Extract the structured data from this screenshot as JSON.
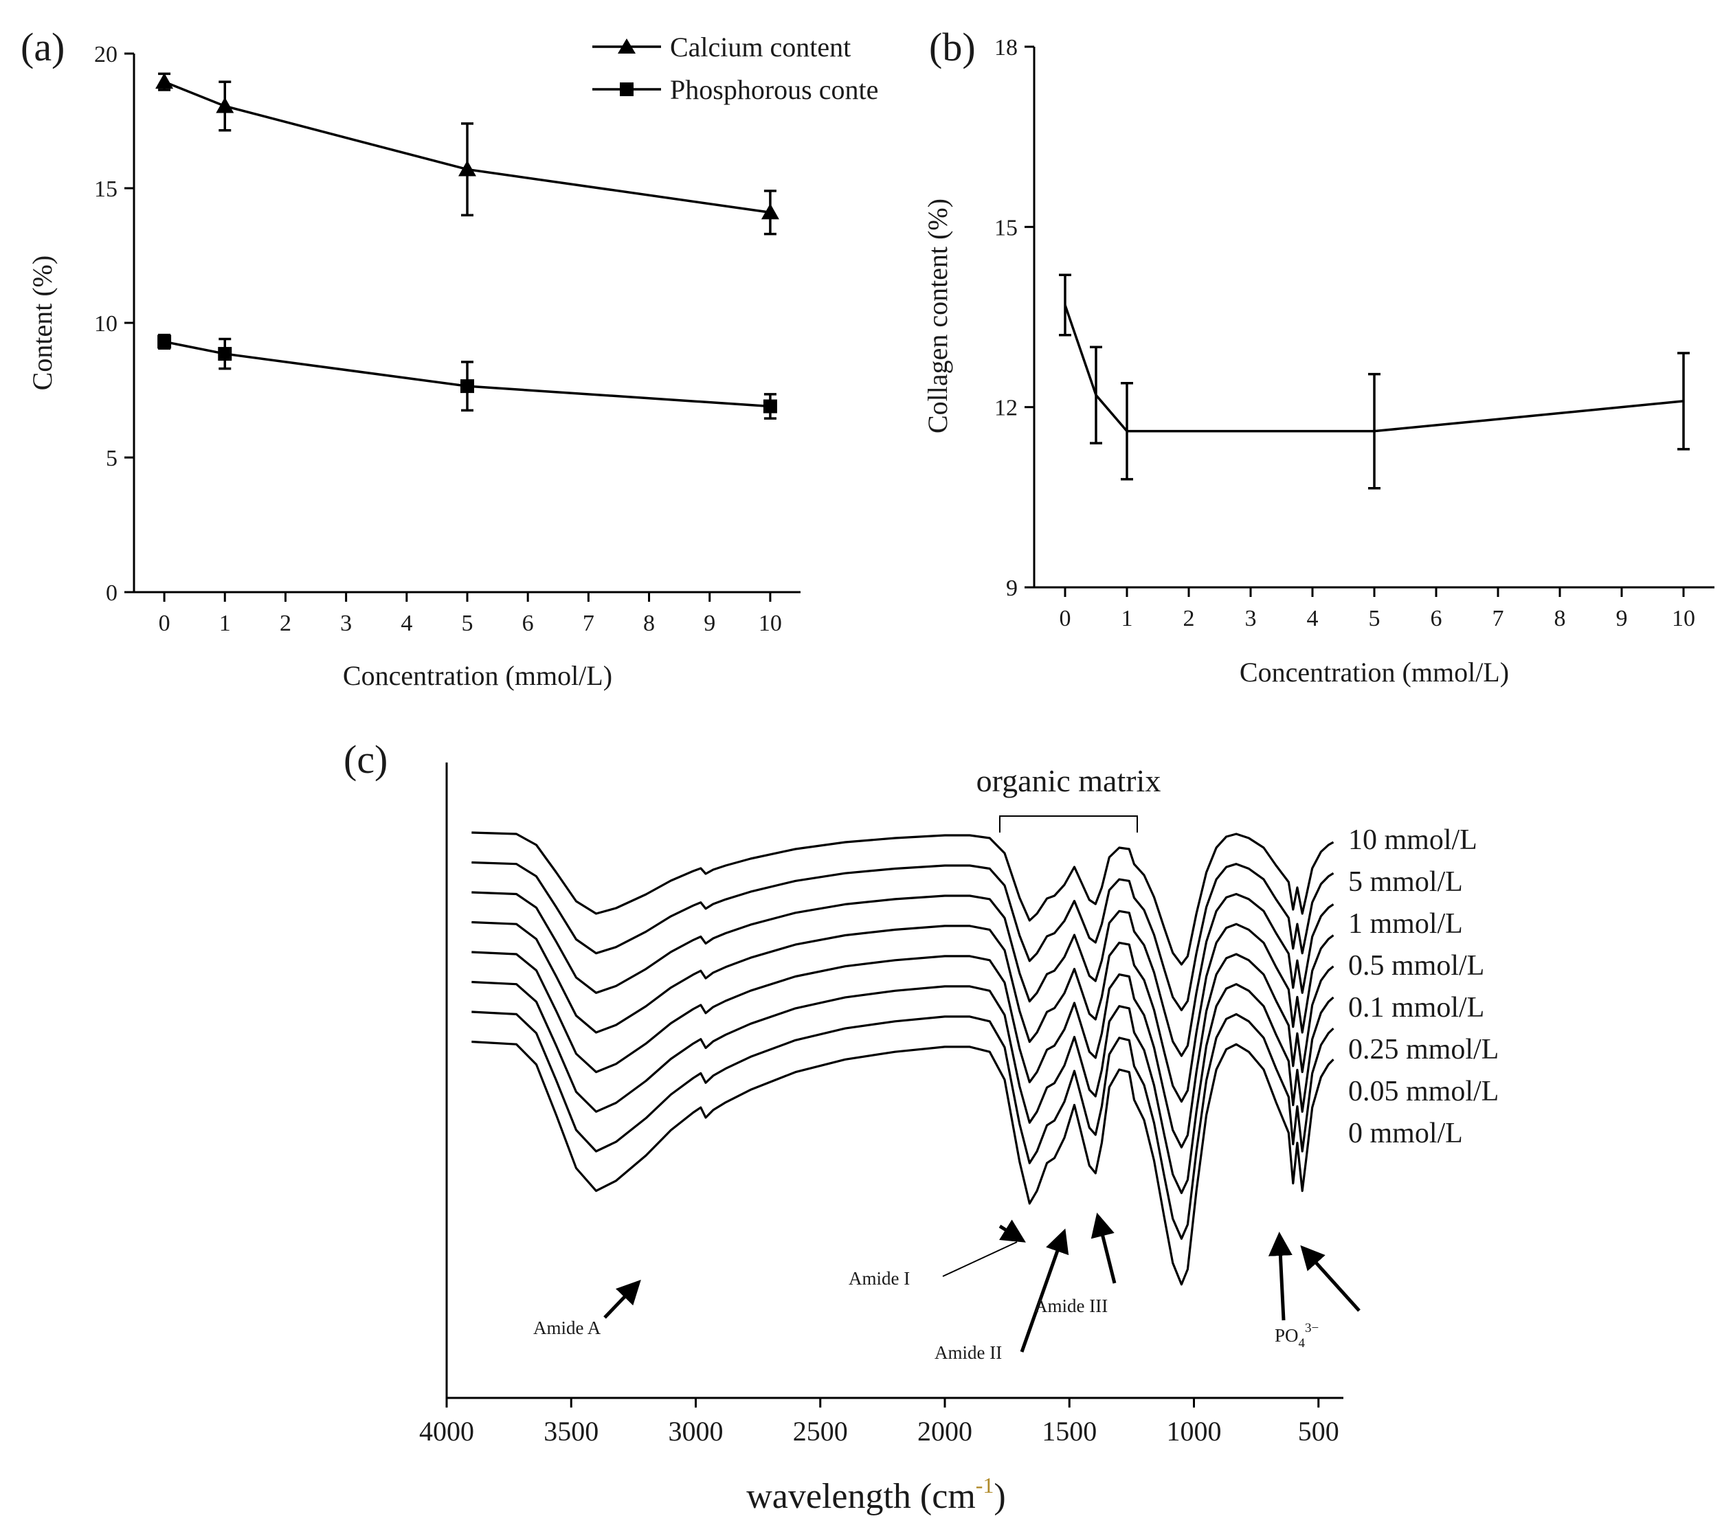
{
  "chart_data": [
    {
      "panel": "(a)",
      "type": "line",
      "xlabel": "Concentration (mmol/L)",
      "ylabel": "Content (%)",
      "xlim": [
        -0.5,
        10.5
      ],
      "ylim": [
        0,
        20
      ],
      "xticks": [
        "0",
        "1",
        "2",
        "3",
        "4",
        "5",
        "6",
        "7",
        "8",
        "9",
        "10"
      ],
      "yticks": [
        "0",
        "5",
        "10",
        "15",
        "20"
      ],
      "legend_position": "top-right",
      "series": [
        {
          "name": "Calcium content",
          "marker": "triangle",
          "x": [
            0,
            1,
            5,
            10
          ],
          "y": [
            18.95,
            18.05,
            15.7,
            14.1
          ],
          "err": [
            0.3,
            0.9,
            1.7,
            0.8
          ]
        },
        {
          "name": "Phosphorous conte",
          "marker": "square",
          "x": [
            0,
            1,
            5,
            10
          ],
          "y": [
            9.3,
            8.85,
            7.65,
            6.9
          ],
          "err": [
            0.25,
            0.55,
            0.9,
            0.45
          ]
        }
      ]
    },
    {
      "panel": "(b)",
      "type": "line",
      "xlabel": "Concentration (mmol/L)",
      "ylabel": "Collagen content (%)",
      "xlim": [
        -0.5,
        10.5
      ],
      "ylim": [
        9,
        18
      ],
      "xticks": [
        "0",
        "1",
        "2",
        "3",
        "4",
        "5",
        "6",
        "7",
        "8",
        "9",
        "10"
      ],
      "yticks": [
        "9",
        "12",
        "15",
        "18"
      ],
      "series": [
        {
          "name": "",
          "x": [
            0,
            0.5,
            1,
            5,
            10
          ],
          "y": [
            13.7,
            12.2,
            11.6,
            11.6,
            12.1
          ],
          "err": [
            0.5,
            0.8,
            0.8,
            0.95,
            0.8
          ]
        }
      ]
    },
    {
      "panel": "(c)",
      "type": "line",
      "xlabel": "wavelength (cm",
      "xlabel_sup": "-1",
      "xlabel_end": ")",
      "xlim": [
        4000,
        400
      ],
      "xticks": [
        "4000",
        "3500",
        "3000",
        "2500",
        "2000",
        "1500",
        "1000",
        "500"
      ],
      "bracket_label": "organic matrix",
      "series": [
        {
          "name": "10 mmol/L",
          "offset": 0
        },
        {
          "name": "5 mmol/L",
          "offset": 1
        },
        {
          "name": "1 mmol/L",
          "offset": 2
        },
        {
          "name": "0.5 mmol/L",
          "offset": 3
        },
        {
          "name": "0.1 mmol/L",
          "offset": 4
        },
        {
          "name": "0.25 mmol/L",
          "offset": 5
        },
        {
          "name": "0.05 mmol/L",
          "offset": 6
        },
        {
          "name": "0 mmol/L",
          "offset": 7
        }
      ],
      "annotations": [
        "Amide A",
        "Amide I",
        "Amide II",
        "Amide III",
        "PO",
        "4",
        "3−"
      ]
    }
  ]
}
